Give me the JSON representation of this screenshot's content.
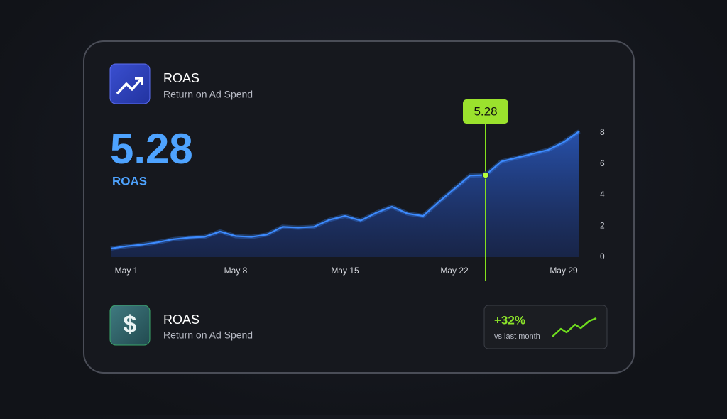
{
  "header": {
    "title": "ROAS",
    "subtitle": "Return on Ad Spend"
  },
  "kpi": {
    "value": "5.28",
    "label": "ROAS"
  },
  "chart_data": {
    "type": "area",
    "categories": [
      null,
      "May 1",
      null,
      null,
      null,
      null,
      null,
      null,
      "May 8",
      null,
      null,
      null,
      null,
      null,
      null,
      "May 15",
      null,
      null,
      null,
      null,
      null,
      null,
      "May 22",
      null,
      null,
      null,
      null,
      null,
      null,
      "May 29",
      null
    ],
    "series": [
      {
        "color": "#3d8bff",
        "values": [
          0.55,
          0.7,
          0.8,
          0.95,
          1.15,
          1.25,
          1.3,
          1.65,
          1.35,
          1.3,
          1.45,
          1.95,
          1.9,
          1.95,
          2.4,
          2.65,
          2.35,
          2.85,
          3.25,
          2.8,
          2.65,
          3.55,
          4.4,
          5.25,
          5.28,
          6.15,
          6.4,
          6.65,
          6.9,
          7.4,
          8.1
        ]
      }
    ],
    "ylim": [
      0,
      8
    ],
    "yticks": [
      0,
      2,
      4,
      6,
      8
    ]
  },
  "footer": {
    "title": "ROAS",
    "subtitle": "Return on Ad Spend",
    "change": "+32%",
    "change_note": "vs last month"
  }
}
